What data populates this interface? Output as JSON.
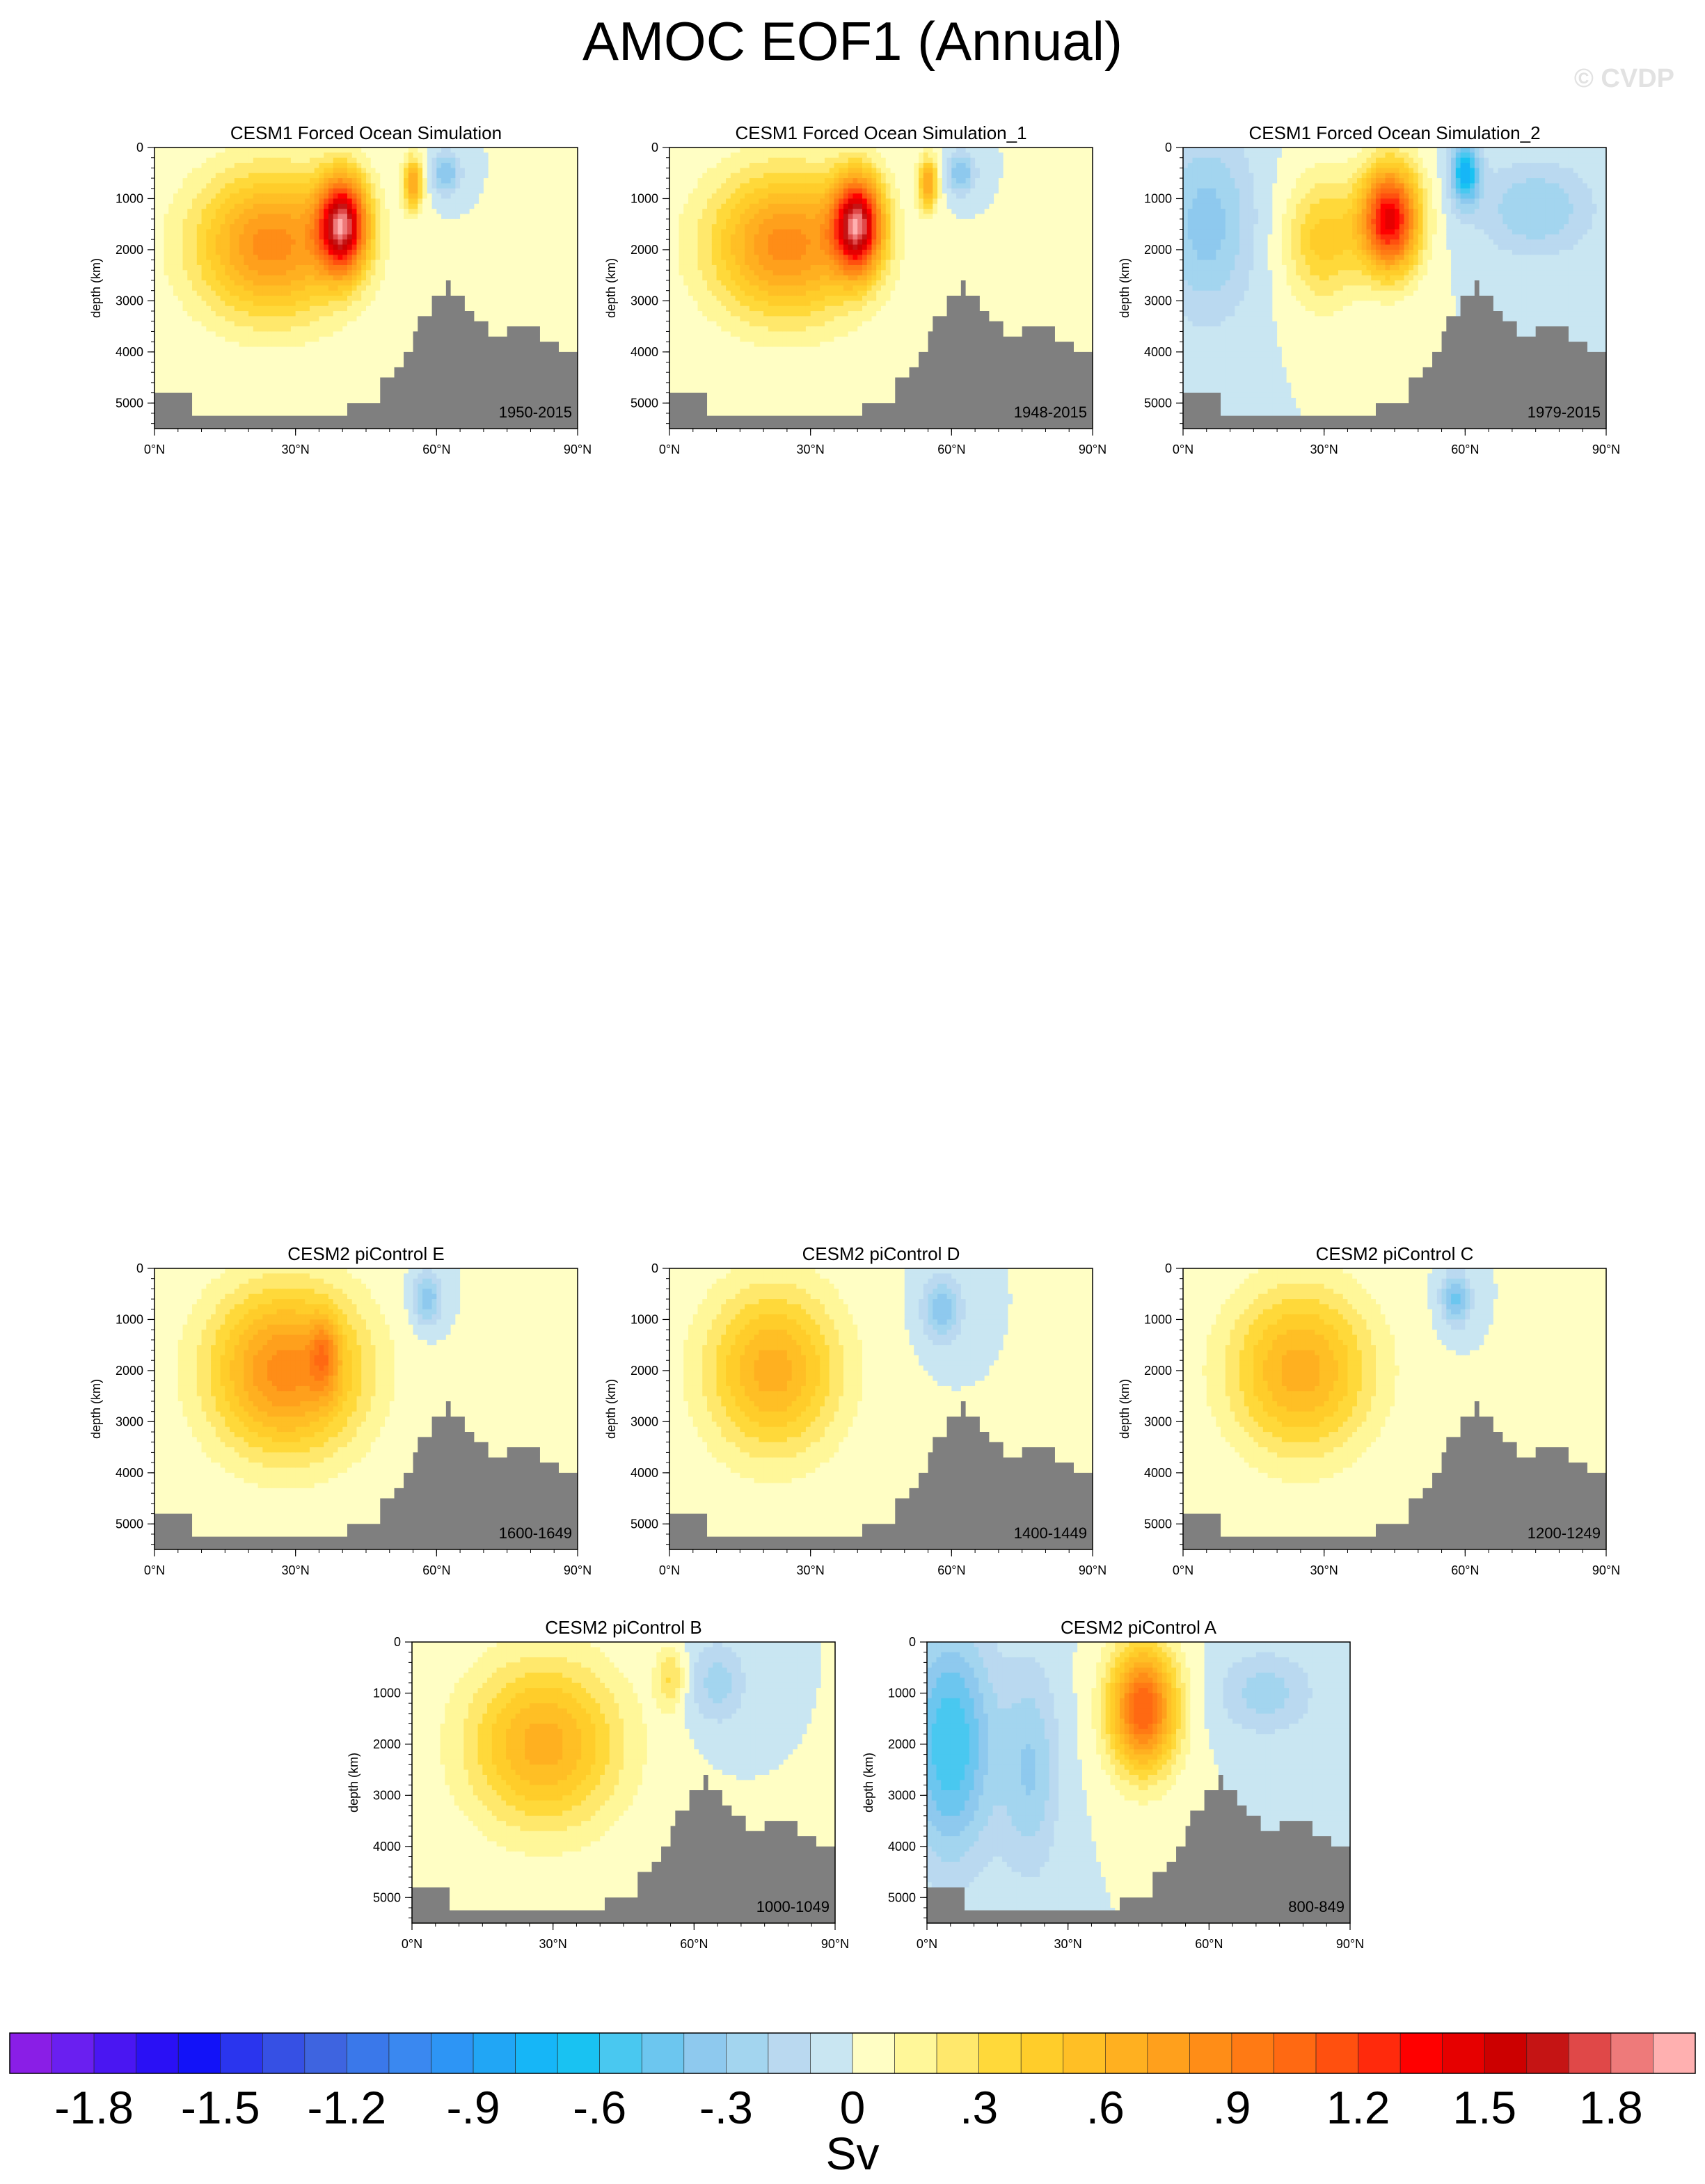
{
  "title": "AMOC EOF1 (Annual)",
  "watermark": "© CVDP",
  "chart_data": {
    "type": "heatmap",
    "x_axis": {
      "range": [
        0,
        90
      ],
      "ticks": [
        "0°N",
        "30°N",
        "60°N",
        "90°N"
      ]
    },
    "y_axis": {
      "label": "depth (km)",
      "range": [
        0,
        5500
      ],
      "inverted": true,
      "ticks": [
        "0",
        "1000",
        "2000",
        "3000",
        "4000",
        "5000"
      ]
    },
    "colorbar": {
      "unit": "Sv",
      "tick_labels": [
        "-1.8",
        "-1.5",
        "-1.2",
        "-.9",
        "-.6",
        "-.3",
        "0",
        ".3",
        ".6",
        ".9",
        "1.2",
        "1.5",
        "1.8"
      ],
      "tick_values": [
        -1.8,
        -1.5,
        -1.2,
        -0.9,
        -0.6,
        -0.3,
        0,
        0.3,
        0.6,
        0.9,
        1.2,
        1.5,
        1.8
      ],
      "colors": [
        "#8a1ee6",
        "#6a1ff0",
        "#4a16f2",
        "#2a10f5",
        "#1212f8",
        "#2a35ee",
        "#3650e4",
        "#3e64e0",
        "#3a78ea",
        "#3a88f0",
        "#2d95f5",
        "#21a6f5",
        "#16b6f7",
        "#19c2f2",
        "#49c8f0",
        "#6cc6ef",
        "#8ec9ee",
        "#a3d5ef",
        "#bad9f0",
        "#c9e6f2",
        "#fffec4",
        "#fff799",
        "#ffe86c",
        "#ffd93a",
        "#ffcd2a",
        "#ffbf25",
        "#ffb020",
        "#ffa01c",
        "#ff8d17",
        "#ff7a14",
        "#ff6912",
        "#ff500f",
        "#ff2a0c",
        "#ff0000",
        "#e60000",
        "#cc0000",
        "#c51414",
        "#e04848",
        "#ee7a7a",
        "#ffb0b0"
      ]
    },
    "panels": [
      {
        "title": "CESM1 Forced Ocean Simulation",
        "period": "1950-2015",
        "features": [
          {
            "lat": 25,
            "depth": 1900,
            "value": 0.85,
            "lat_spread": 16,
            "depth_spread": 1400
          },
          {
            "lat": 40,
            "depth": 1500,
            "value": 1.6,
            "lat_spread": 5,
            "depth_spread": 900
          },
          {
            "lat": 55,
            "depth": 700,
            "value": 0.7,
            "lat_spread": 2,
            "depth_spread": 500
          },
          {
            "lat": 62,
            "depth": 500,
            "value": -0.4,
            "lat_spread": 3,
            "depth_spread": 400
          }
        ]
      },
      {
        "title": "CESM1 Forced Ocean Simulation_1",
        "period": "1948-2015",
        "features": [
          {
            "lat": 25,
            "depth": 1900,
            "value": 0.85,
            "lat_spread": 16,
            "depth_spread": 1400
          },
          {
            "lat": 40,
            "depth": 1500,
            "value": 1.6,
            "lat_spread": 5,
            "depth_spread": 900
          },
          {
            "lat": 55,
            "depth": 700,
            "value": 0.7,
            "lat_spread": 2,
            "depth_spread": 500
          },
          {
            "lat": 62,
            "depth": 500,
            "value": -0.4,
            "lat_spread": 3,
            "depth_spread": 400
          }
        ]
      },
      {
        "title": "CESM1 Forced Ocean Simulation_2",
        "period": "1979-2015",
        "features": [
          {
            "lat": 44,
            "depth": 1400,
            "value": 1.45,
            "lat_spread": 6,
            "depth_spread": 1000
          },
          {
            "lat": 30,
            "depth": 1800,
            "value": 0.45,
            "lat_spread": 8,
            "depth_spread": 1200
          },
          {
            "lat": 5,
            "depth": 1500,
            "value": -0.35,
            "lat_spread": 10,
            "depth_spread": 1800
          },
          {
            "lat": 60,
            "depth": 500,
            "value": -0.75,
            "lat_spread": 3,
            "depth_spread": 600
          },
          {
            "lat": 75,
            "depth": 1200,
            "value": -0.3,
            "lat_spread": 12,
            "depth_spread": 900
          }
        ]
      },
      {
        "title": "CESM2 piControl E",
        "period": "1600-1649",
        "features": [
          {
            "lat": 28,
            "depth": 2000,
            "value": 0.85,
            "lat_spread": 16,
            "depth_spread": 1600
          },
          {
            "lat": 36,
            "depth": 1700,
            "value": 0.4,
            "lat_spread": 3,
            "depth_spread": 700
          },
          {
            "lat": 58,
            "depth": 600,
            "value": -0.4,
            "lat_spread": 3,
            "depth_spread": 500
          }
        ]
      },
      {
        "title": "CESM2 piControl D",
        "period": "1400-1449",
        "features": [
          {
            "lat": 22,
            "depth": 2000,
            "value": 0.65,
            "lat_spread": 14,
            "depth_spread": 1600
          },
          {
            "lat": 58,
            "depth": 800,
            "value": -0.4,
            "lat_spread": 4,
            "depth_spread": 600
          }
        ]
      },
      {
        "title": "CESM2 piControl C",
        "period": "1200-1249",
        "features": [
          {
            "lat": 25,
            "depth": 2000,
            "value": 0.65,
            "lat_spread": 15,
            "depth_spread": 1600
          },
          {
            "lat": 58,
            "depth": 600,
            "value": -0.45,
            "lat_spread": 3,
            "depth_spread": 500
          }
        ]
      },
      {
        "title": "CESM2 piControl B",
        "period": "1000-1049",
        "features": [
          {
            "lat": 28,
            "depth": 2000,
            "value": 0.65,
            "lat_spread": 16,
            "depth_spread": 1600
          },
          {
            "lat": 55,
            "depth": 700,
            "value": 0.3,
            "lat_spread": 3,
            "depth_spread": 600
          },
          {
            "lat": 65,
            "depth": 800,
            "value": -0.25,
            "lat_spread": 6,
            "depth_spread": 800
          }
        ]
      },
      {
        "title": "CESM2 piControl A",
        "period": "800-849",
        "features": [
          {
            "lat": 46,
            "depth": 1300,
            "value": 1.1,
            "lat_spread": 7,
            "depth_spread": 1200
          },
          {
            "lat": 5,
            "depth": 2000,
            "value": -0.6,
            "lat_spread": 9,
            "depth_spread": 2200
          },
          {
            "lat": 22,
            "depth": 2500,
            "value": -0.3,
            "lat_spread": 6,
            "depth_spread": 2000
          },
          {
            "lat": 72,
            "depth": 1000,
            "value": -0.25,
            "lat_spread": 10,
            "depth_spread": 800
          }
        ]
      }
    ]
  }
}
